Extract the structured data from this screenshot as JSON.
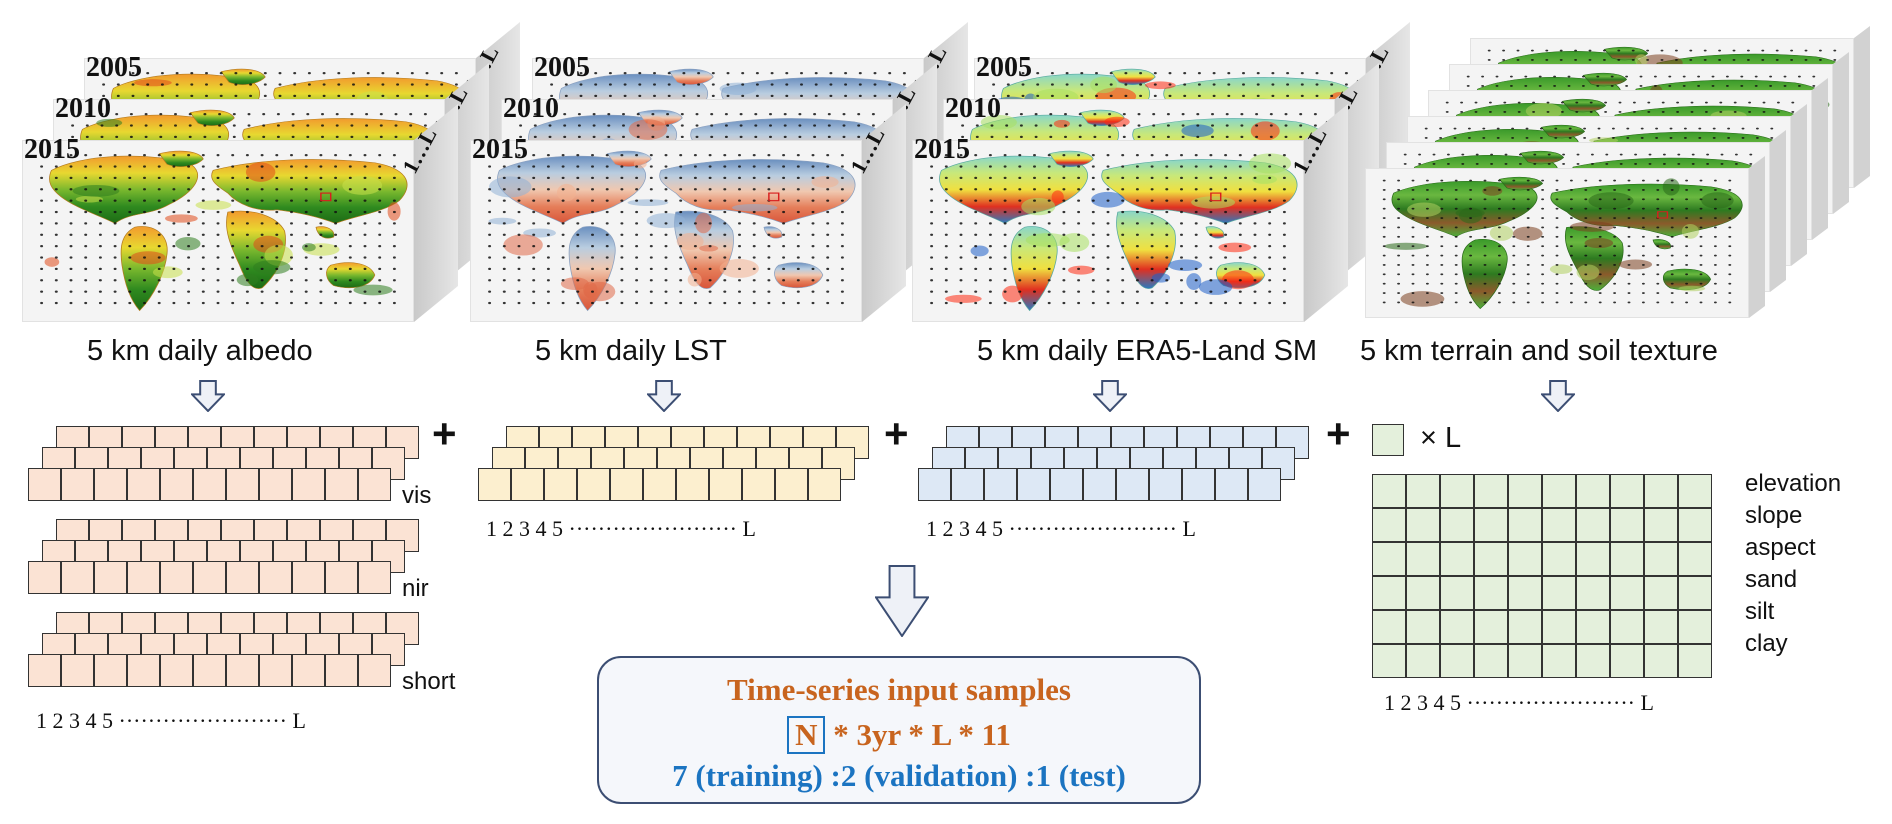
{
  "map_groups": [
    {
      "id": "albedo",
      "caption": "5 km daily albedo",
      "years": [
        "2005",
        "2010",
        "2015"
      ],
      "range_label": "1…L"
    },
    {
      "id": "lst",
      "caption": "5 km daily LST",
      "years": [
        "2005",
        "2010",
        "2015"
      ],
      "range_label": "1…L"
    },
    {
      "id": "sm",
      "caption": "5 km daily ERA5-Land SM",
      "years": [
        "2005",
        "2010",
        "2015"
      ],
      "range_label": "1…L"
    },
    {
      "id": "terrain",
      "caption": "5 km terrain and soil texture"
    }
  ],
  "albedo_bands": [
    "vis",
    "nir",
    "short"
  ],
  "axis": {
    "ticks": [
      "1",
      "2",
      "3",
      "4",
      "5"
    ],
    "dots": "·······················",
    "end": "L"
  },
  "static": {
    "multiplier": "× L",
    "labels": [
      "elevation",
      "slope",
      "aspect",
      "sand",
      "silt",
      "clay"
    ]
  },
  "plus_sign": "+",
  "result": {
    "title": "Time-series input samples",
    "n_label": "N",
    "formula_rest": " * 3yr * L * 11",
    "split": "7 (training) :2 (validation) :1 (test)"
  },
  "colors": {
    "albedo_cell": "#fbe3d4",
    "lst_cell": "#fcefcf",
    "sm_cell": "#dde8f5",
    "static_cell": "#e4f0dc",
    "title_orange": "#c8641e",
    "split_blue": "#1b74c1"
  }
}
